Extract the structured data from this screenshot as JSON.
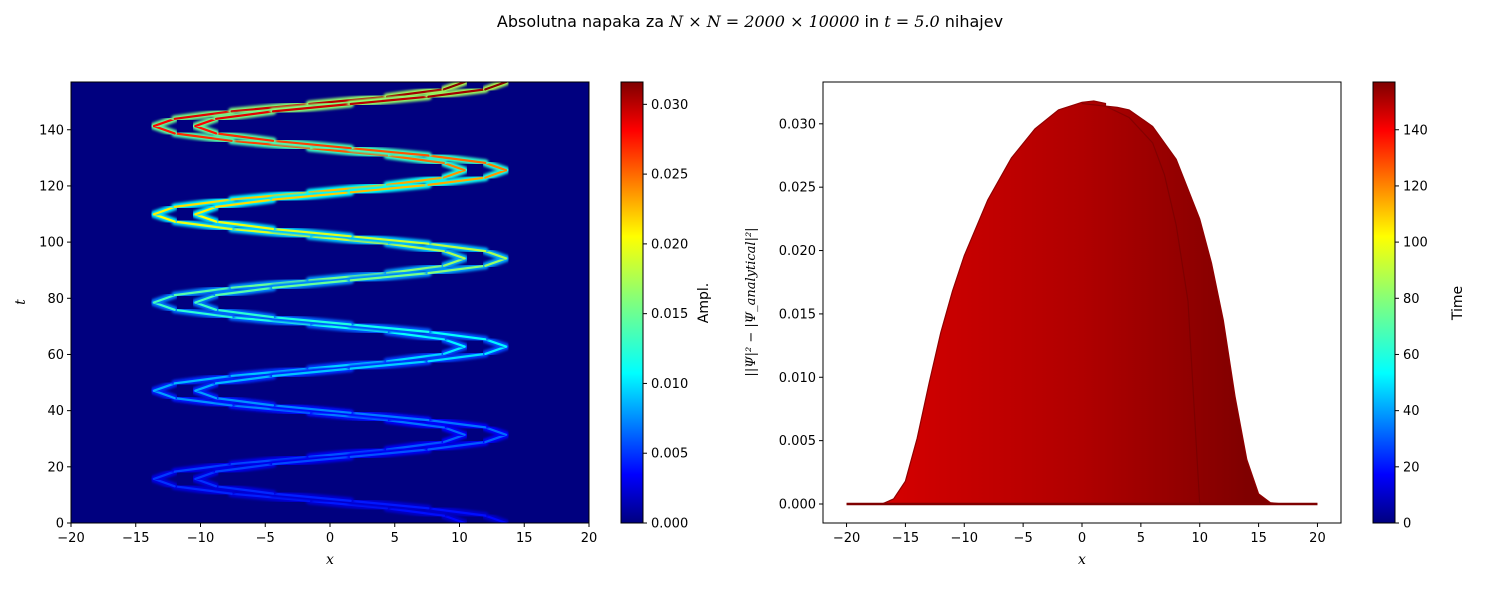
{
  "figure": {
    "suptitle_prefix": "Absolutna napaka za ",
    "suptitle_math1": "N × N = 2000 × 10000",
    "suptitle_mid": " in ",
    "suptitle_math2": "t = 5.0",
    "suptitle_suffix": " nihajev"
  },
  "colors": {
    "jet": [
      "#00007f",
      "#0000ff",
      "#007fff",
      "#00ffff",
      "#7fff7f",
      "#ffff00",
      "#ff7f00",
      "#ff0000",
      "#7f0000"
    ],
    "red_fill_light": "#d20000",
    "red_fill_dark": "#7f0000"
  },
  "chart_data": [
    {
      "type": "heatmap",
      "xlabel": "x",
      "ylabel": "t",
      "xlim": [
        -20,
        20
      ],
      "ylim": [
        0,
        157
      ],
      "xticks": [
        -20,
        -15,
        -10,
        -5,
        0,
        5,
        10,
        15,
        20
      ],
      "yticks": [
        0,
        20,
        40,
        60,
        80,
        100,
        120,
        140
      ],
      "colorbar": {
        "label": "Ampl.",
        "range": [
          0,
          0.0316
        ],
        "ticks": [
          "0.000",
          "0.005",
          "0.010",
          "0.015",
          "0.020",
          "0.025",
          "0.030"
        ]
      },
      "oscillation": {
        "amplitude": 12,
        "period_t": 31.4,
        "turning_points_t": [
          0,
          15.7,
          31.4,
          47.1,
          62.8,
          78.5,
          94.2,
          109.9,
          125.6,
          141.3,
          157
        ],
        "turning_points_x": [
          12,
          -12,
          12,
          -12,
          12,
          -12,
          12,
          -12,
          12,
          -12,
          12
        ],
        "peak_error_t": [
          0,
          20,
          40,
          60,
          80,
          100,
          120,
          140,
          157
        ],
        "peak_error": [
          0.004,
          0.006,
          0.008,
          0.011,
          0.014,
          0.018,
          0.022,
          0.027,
          0.0316
        ]
      }
    },
    {
      "type": "line",
      "xlabel": "x",
      "ylabel": "||Ψ|² − |Ψ_analytical|²|",
      "xlim": [
        -22,
        22
      ],
      "ylim": [
        -0.0015,
        0.0333
      ],
      "xticks": [
        -20,
        -15,
        -10,
        -5,
        0,
        5,
        10,
        15,
        20
      ],
      "yticks": [
        "0.000",
        "0.005",
        "0.010",
        "0.015",
        "0.020",
        "0.025",
        "0.030"
      ],
      "ytick_values": [
        0,
        0.005,
        0.01,
        0.015,
        0.02,
        0.025,
        0.03
      ],
      "colorbar": {
        "label": "Time",
        "range": [
          0,
          157
        ],
        "ticks": [
          "0",
          "20",
          "40",
          "60",
          "80",
          "100",
          "120",
          "140"
        ]
      },
      "envelope_front": {
        "x": [
          -20,
          -17,
          -16,
          -15,
          -14,
          -13,
          -12,
          -11,
          -10,
          -8,
          -6,
          -4,
          -2,
          0,
          1,
          2
        ],
        "y": [
          0,
          0,
          0.0004,
          0.0018,
          0.0052,
          0.0095,
          0.0135,
          0.0168,
          0.0196,
          0.024,
          0.0273,
          0.0296,
          0.0311,
          0.0317,
          0.0318,
          0.0316
        ]
      },
      "envelope_back": {
        "x": [
          2,
          3,
          4,
          6,
          8,
          10,
          11,
          12,
          13,
          14,
          15,
          16,
          17,
          20
        ],
        "y": [
          0.0314,
          0.0313,
          0.0311,
          0.0298,
          0.0272,
          0.0225,
          0.019,
          0.0145,
          0.0085,
          0.0035,
          0.0008,
          0.0001,
          0,
          0
        ]
      },
      "inner_curve": {
        "x": [
          0,
          2,
          4,
          6,
          7,
          8,
          9,
          10
        ],
        "y": [
          0.0316,
          0.0314,
          0.0305,
          0.0285,
          0.026,
          0.022,
          0.016,
          0.0
        ]
      },
      "baseline": {
        "x": [
          -20,
          20
        ],
        "y": [
          0,
          0
        ]
      }
    }
  ]
}
